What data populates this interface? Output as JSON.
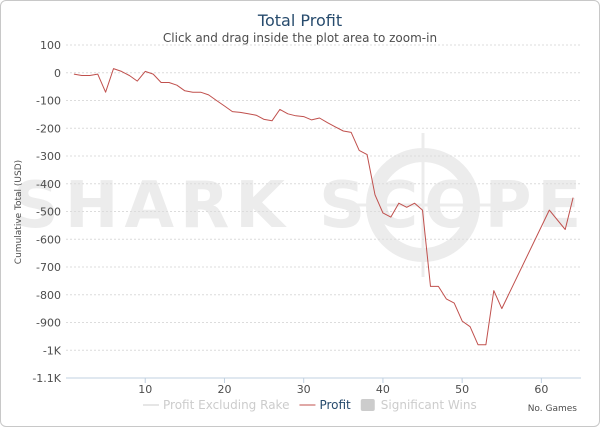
{
  "chart_data": {
    "type": "line",
    "title": "Total Profit",
    "subtitle": "Click and drag inside the plot area to zoom-in",
    "ylabel": "Cumulative Total (USD)",
    "xlabel": "No. Games",
    "watermark": "SHARK SCOPE",
    "ylim": [
      -1100,
      100
    ],
    "xlim": [
      0,
      65
    ],
    "y_ticks": [
      {
        "value": 100,
        "label": "100"
      },
      {
        "value": 0,
        "label": "0"
      },
      {
        "value": -100,
        "label": "-100"
      },
      {
        "value": -200,
        "label": "-200"
      },
      {
        "value": -300,
        "label": "-300"
      },
      {
        "value": -400,
        "label": "-400"
      },
      {
        "value": -500,
        "label": "-500"
      },
      {
        "value": -600,
        "label": "-600"
      },
      {
        "value": -700,
        "label": "-700"
      },
      {
        "value": -800,
        "label": "-800"
      },
      {
        "value": -900,
        "label": "-900"
      },
      {
        "value": -1000,
        "label": "-1K"
      },
      {
        "value": -1100,
        "label": "-1.1K"
      }
    ],
    "x_ticks": [
      {
        "value": 10,
        "label": "10"
      },
      {
        "value": 20,
        "label": "20"
      },
      {
        "value": 30,
        "label": "30"
      },
      {
        "value": 40,
        "label": "40"
      },
      {
        "value": 50,
        "label": "50"
      },
      {
        "value": 60,
        "label": "60"
      }
    ],
    "grid": true,
    "legend_position": "bottom",
    "legend": [
      {
        "label": "Profit Excluding Rake",
        "color": "#cccccc",
        "kind": "line",
        "active": false
      },
      {
        "label": "Profit",
        "color": "#c0504d",
        "kind": "line",
        "active": true
      },
      {
        "label": "Significant Wins",
        "color": "#cccccc",
        "kind": "box",
        "active": false
      }
    ],
    "series": [
      {
        "name": "Profit",
        "color": "#c0504d",
        "x": [
          1,
          2,
          3,
          4,
          5,
          6,
          7,
          8,
          9,
          10,
          11,
          12,
          13,
          14,
          15,
          16,
          17,
          18,
          19,
          20,
          21,
          22,
          23,
          24,
          25,
          26,
          27,
          28,
          29,
          30,
          31,
          32,
          33,
          34,
          35,
          36,
          37,
          38,
          39,
          40,
          41,
          42,
          43,
          44,
          45,
          46,
          47,
          48,
          49,
          50,
          51,
          52,
          53,
          54,
          55,
          61,
          63,
          64
        ],
        "values": [
          -5,
          -10,
          -10,
          -5,
          -70,
          15,
          5,
          -10,
          -30,
          5,
          -5,
          -35,
          -35,
          -45,
          -65,
          -70,
          -70,
          -80,
          -100,
          -120,
          -140,
          -143,
          -148,
          -153,
          -168,
          -173,
          -132,
          -148,
          -155,
          -158,
          -170,
          -163,
          -180,
          -195,
          -210,
          -215,
          -280,
          -295,
          -440,
          -505,
          -520,
          -470,
          -485,
          -470,
          -495,
          -770,
          -770,
          -815,
          -830,
          -895,
          -915,
          -980,
          -980,
          -785,
          -850,
          -495,
          -565,
          -450
        ]
      }
    ]
  }
}
